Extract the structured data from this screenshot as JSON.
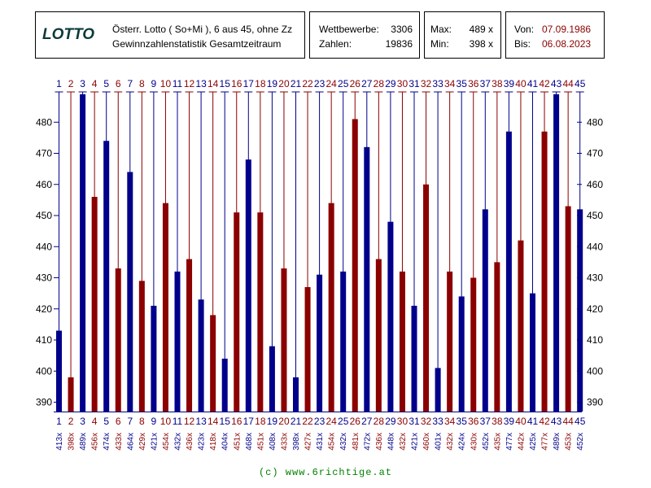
{
  "header": {
    "logo": "LOTTO",
    "line1": "Österr. Lotto ( So+Mi ), 6 aus 45, ohne Zz",
    "line2": "Gewinnzahlenstatistik Gesamtzeitraum",
    "wettbewerbe_label": "Wettbewerbe:",
    "wettbewerbe_value": "3306",
    "zahlen_label": "Zahlen:",
    "zahlen_value": "19836",
    "max_label": "Max:",
    "max_value": "489 x",
    "min_label": "Min:",
    "min_value": "398 x",
    "von_label": "Von:",
    "von_value": "07.09.1986",
    "bis_label": "Bis:",
    "bis_value": "06.08.2023"
  },
  "colors": {
    "blue": "#00008b",
    "red": "#8b0000",
    "green": "#008000"
  },
  "footer": "(c) www.6richtige.at",
  "chart_data": {
    "type": "bar",
    "title": "Gewinnzahlenstatistik Gesamtzeitraum",
    "categories": [
      "1",
      "2",
      "3",
      "4",
      "5",
      "6",
      "7",
      "8",
      "9",
      "10",
      "11",
      "12",
      "13",
      "14",
      "15",
      "16",
      "17",
      "18",
      "19",
      "20",
      "21",
      "22",
      "23",
      "24",
      "25",
      "26",
      "27",
      "28",
      "29",
      "30",
      "31",
      "32",
      "33",
      "34",
      "35",
      "36",
      "37",
      "38",
      "39",
      "40",
      "41",
      "42",
      "43",
      "44",
      "45"
    ],
    "values": [
      413,
      398,
      489,
      456,
      474,
      433,
      464,
      429,
      421,
      454,
      432,
      436,
      423,
      418,
      404,
      451,
      468,
      451,
      408,
      433,
      398,
      427,
      431,
      454,
      432,
      481,
      472,
      436,
      448,
      432,
      421,
      460,
      401,
      432,
      424,
      430,
      452,
      435,
      477,
      442,
      425,
      477,
      489,
      453,
      452
    ],
    "value_labels": [
      "413x",
      "398x",
      "489x",
      "456x",
      "474x",
      "433x",
      "464x",
      "429x",
      "421x",
      "454x",
      "432x",
      "436x",
      "423x",
      "418x",
      "404x",
      "451x",
      "468x",
      "451x",
      "408x",
      "433x",
      "398x",
      "427x",
      "431x",
      "454x",
      "432x",
      "481x",
      "472x",
      "436x",
      "448x",
      "432x",
      "421x",
      "460x",
      "401x",
      "432x",
      "424x",
      "430x",
      "452x",
      "435x",
      "477x",
      "442x",
      "425x",
      "477x",
      "489x",
      "453x",
      "452x"
    ],
    "y_ticks": [
      "390",
      "400",
      "410",
      "420",
      "430",
      "440",
      "450",
      "460",
      "470",
      "480"
    ],
    "ylim": [
      387,
      490
    ],
    "color_rule": "odd numbers blue, even numbers red"
  }
}
